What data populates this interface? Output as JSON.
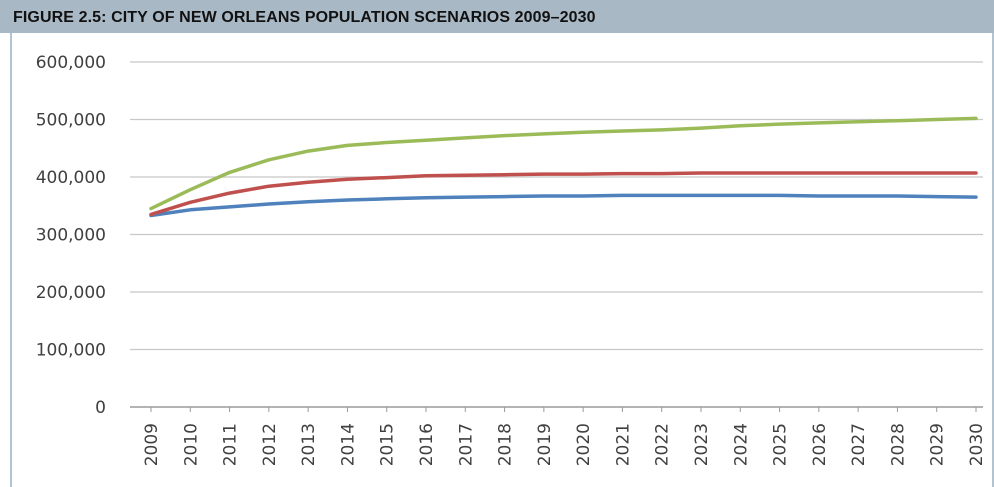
{
  "title": "FIGURE 2.5: CITY OF NEW ORLEANS POPULATION SCENARIOS  2009–2030",
  "chart_data": {
    "type": "line",
    "title": "FIGURE 2.5: CITY OF NEW ORLEANS POPULATION SCENARIOS  2009–2030",
    "xlabel": "",
    "ylabel": "",
    "ylim": [
      0,
      600000
    ],
    "yticks": [
      0,
      100000,
      200000,
      300000,
      400000,
      500000,
      600000
    ],
    "ytick_labels": [
      "0",
      "100,000",
      "200,000",
      "300,000",
      "400,000",
      "500,000",
      "600,000"
    ],
    "grid": true,
    "legend": "none",
    "categories": [
      "2009",
      "2010",
      "2011",
      "2012",
      "2013",
      "2014",
      "2015",
      "2016",
      "2017",
      "2018",
      "2019",
      "2020",
      "2021",
      "2022",
      "2023",
      "2024",
      "2025",
      "2026",
      "2027",
      "2028",
      "2029",
      "2030"
    ],
    "series": [
      {
        "color": "#4f81bd",
        "values": [
          333000,
          343000,
          348000,
          353000,
          357000,
          360000,
          362000,
          364000,
          365000,
          366000,
          367000,
          367000,
          368000,
          368000,
          368000,
          368000,
          368000,
          367000,
          367000,
          367000,
          366000,
          365000
        ]
      },
      {
        "color": "#c0504d",
        "values": [
          335000,
          356000,
          372000,
          384000,
          391000,
          396000,
          399000,
          402000,
          403000,
          404000,
          405000,
          405000,
          406000,
          406000,
          407000,
          407000,
          407000,
          407000,
          407000,
          407000,
          407000,
          407000
        ]
      },
      {
        "color": "#9bbb59",
        "values": [
          345000,
          378000,
          408000,
          430000,
          445000,
          455000,
          460000,
          464000,
          468000,
          472000,
          475000,
          478000,
          480000,
          482000,
          485000,
          489000,
          492000,
          494000,
          496000,
          498000,
          500000,
          502000
        ]
      }
    ]
  }
}
